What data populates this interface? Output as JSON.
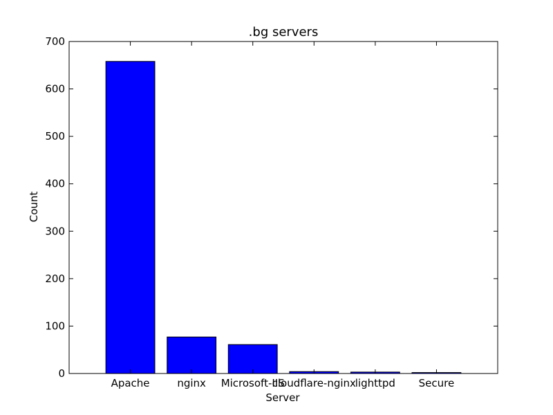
{
  "chart_data": {
    "type": "bar",
    "title": ".bg servers",
    "xlabel": "Server",
    "ylabel": "Count",
    "categories": [
      "Apache",
      "nginx",
      "Microsoft-IIS",
      "cloudflare-nginx",
      "lighttpd",
      "Secure"
    ],
    "values": [
      658,
      77,
      61,
      4,
      3,
      2
    ],
    "ylim": [
      0,
      700
    ],
    "yticks": [
      0,
      100,
      200,
      300,
      400,
      500,
      600,
      700
    ],
    "grid": false,
    "legend": "none",
    "colors": {
      "bar": "#0000ff",
      "edge": "#000000"
    }
  }
}
